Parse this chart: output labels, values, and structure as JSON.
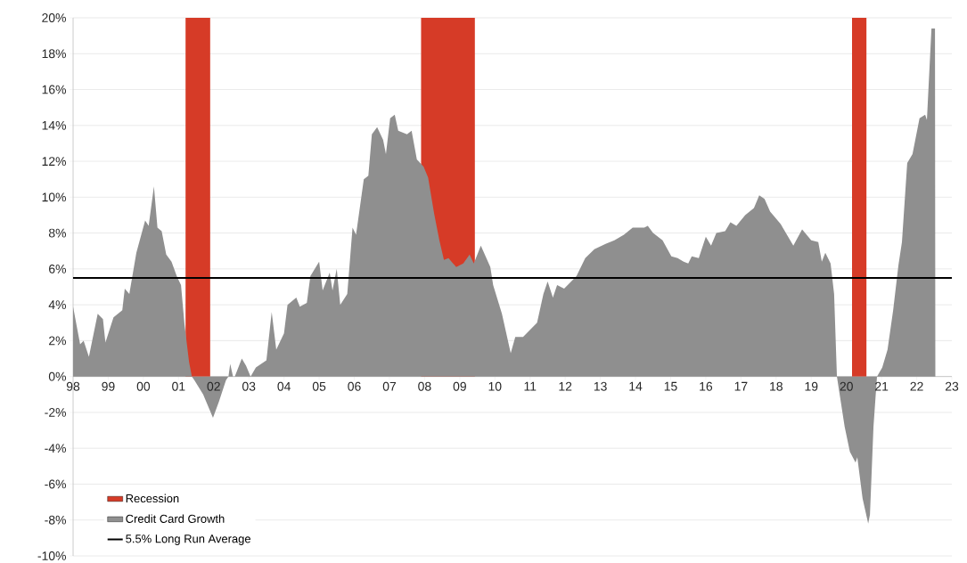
{
  "chart_data": {
    "type": "area",
    "x": [
      1998.0,
      1998.2,
      1998.3,
      1998.45,
      1998.7,
      1998.85,
      1998.92,
      1999.15,
      1999.4,
      1999.47,
      1999.6,
      1999.8,
      2000.05,
      2000.15,
      2000.3,
      2000.4,
      2000.52,
      2000.65,
      2000.8,
      2000.95,
      2001.07,
      2001.17,
      2001.3,
      2001.38,
      2001.45,
      2001.7,
      2001.98,
      2002.15,
      2002.35,
      2002.42,
      2002.47,
      2002.55,
      2002.6,
      2002.8,
      2002.92,
      2003.05,
      2003.2,
      2003.5,
      2003.65,
      2003.78,
      2004.0,
      2004.1,
      2004.35,
      2004.45,
      2004.65,
      2004.75,
      2005.0,
      2005.1,
      2005.3,
      2005.38,
      2005.5,
      2005.6,
      2005.8,
      2005.95,
      2006.05,
      2006.27,
      2006.4,
      2006.5,
      2006.65,
      2006.82,
      2006.9,
      2007.02,
      2007.15,
      2007.25,
      2007.5,
      2007.63,
      2007.78,
      2007.97,
      2008.1,
      2008.27,
      2008.42,
      2008.55,
      2008.68,
      2008.9,
      2009.1,
      2009.28,
      2009.4,
      2009.6,
      2009.87,
      2009.95,
      2010.2,
      2010.45,
      2010.58,
      2010.8,
      2011.05,
      2011.2,
      2011.38,
      2011.5,
      2011.65,
      2011.77,
      2011.97,
      2012.32,
      2012.57,
      2012.83,
      2013.15,
      2013.4,
      2013.67,
      2013.92,
      2014.25,
      2014.35,
      2014.5,
      2014.77,
      2015.02,
      2015.2,
      2015.37,
      2015.5,
      2015.6,
      2015.8,
      2016.0,
      2016.15,
      2016.3,
      2016.55,
      2016.7,
      2016.87,
      2017.12,
      2017.37,
      2017.52,
      2017.67,
      2017.83,
      2018.13,
      2018.49,
      2018.74,
      2019.0,
      2019.2,
      2019.3,
      2019.4,
      2019.55,
      2019.65,
      2019.73,
      2019.95,
      2020.1,
      2020.26,
      2020.31,
      2020.46,
      2020.62,
      2020.67,
      2020.77,
      2020.87,
      2021.02,
      2021.17,
      2021.33,
      2021.48,
      2021.58,
      2021.73,
      2021.88,
      2022.08,
      2022.24,
      2022.29,
      2022.42,
      2022.52,
      2022.53
    ],
    "series": [
      {
        "name": "Credit Card Growth",
        "color": "#8f8f8f",
        "values": [
          3.9,
          1.8,
          2.0,
          1.1,
          3.5,
          3.2,
          1.9,
          3.3,
          3.7,
          4.9,
          4.6,
          6.9,
          8.7,
          8.4,
          10.6,
          8.3,
          8.1,
          6.8,
          6.4,
          5.6,
          5.1,
          2.9,
          0.8,
          0,
          -0.2,
          -1.0,
          -2.3,
          -1.4,
          -0.2,
          0,
          0.7,
          0,
          0,
          1.0,
          0.6,
          0,
          0.5,
          0.9,
          3.6,
          1.5,
          2.4,
          4.0,
          4.4,
          3.9,
          4.1,
          5.6,
          6.4,
          4.8,
          5.8,
          4.8,
          6.0,
          4.0,
          4.6,
          8.3,
          7.9,
          11.0,
          11.2,
          13.5,
          13.9,
          13.2,
          12.4,
          14.4,
          14.6,
          13.7,
          13.5,
          13.7,
          12.1,
          11.7,
          11.1,
          9.1,
          7.6,
          6.5,
          6.6,
          6.1,
          6.3,
          6.8,
          6.3,
          7.3,
          6.1,
          5.1,
          3.5,
          1.3,
          2.2,
          2.2,
          2.7,
          3.0,
          4.6,
          5.3,
          4.4,
          5.1,
          4.9,
          5.6,
          6.6,
          7.1,
          7.4,
          7.6,
          7.9,
          8.3,
          8.3,
          8.4,
          8.0,
          7.6,
          6.7,
          6.6,
          6.4,
          6.3,
          6.7,
          6.6,
          7.8,
          7.3,
          8.0,
          8.1,
          8.6,
          8.4,
          9.0,
          9.4,
          10.1,
          9.9,
          9.2,
          8.5,
          7.3,
          8.2,
          7.6,
          7.5,
          6.4,
          6.9,
          6.3,
          4.6,
          0,
          -2.8,
          -4.2,
          -4.8,
          -4.5,
          -6.8,
          -8.2,
          -7.7,
          -2.8,
          0,
          0.5,
          1.5,
          3.7,
          6.2,
          7.5,
          11.9,
          12.4,
          14.4,
          14.6,
          14.3,
          19.4,
          19.4,
          0
        ]
      }
    ],
    "bands": [
      {
        "axis": "x",
        "from": 2001.2,
        "to": 2001.9,
        "label": "Recession",
        "color": "#d63b27"
      },
      {
        "axis": "x",
        "from": 2007.9,
        "to": 2009.43,
        "color": "#d63b27"
      },
      {
        "axis": "x",
        "from": 2020.16,
        "to": 2020.57,
        "color": "#d63b27"
      }
    ],
    "ref_lines": [
      {
        "axis": "y",
        "value": 5.5,
        "label": "5.5% Long Run Average",
        "color": "#000000"
      }
    ],
    "xlim": [
      1998,
      2023
    ],
    "ylim": [
      -10,
      20
    ],
    "xticks": [
      {
        "value": 1998,
        "label": "98"
      },
      {
        "value": 1999,
        "label": "99"
      },
      {
        "value": 2000,
        "label": "00"
      },
      {
        "value": 2001,
        "label": "01"
      },
      {
        "value": 2002,
        "label": "02"
      },
      {
        "value": 2003,
        "label": "03"
      },
      {
        "value": 2004,
        "label": "04"
      },
      {
        "value": 2005,
        "label": "05"
      },
      {
        "value": 2006,
        "label": "06"
      },
      {
        "value": 2007,
        "label": "07"
      },
      {
        "value": 2008,
        "label": "08"
      },
      {
        "value": 2009,
        "label": "09"
      },
      {
        "value": 2010,
        "label": "10"
      },
      {
        "value": 2011,
        "label": "11"
      },
      {
        "value": 2012,
        "label": "12"
      },
      {
        "value": 2013,
        "label": "13"
      },
      {
        "value": 2014,
        "label": "14"
      },
      {
        "value": 2015,
        "label": "15"
      },
      {
        "value": 2016,
        "label": "16"
      },
      {
        "value": 2017,
        "label": "17"
      },
      {
        "value": 2018,
        "label": "18"
      },
      {
        "value": 2019,
        "label": "19"
      },
      {
        "value": 2020,
        "label": "20"
      },
      {
        "value": 2021,
        "label": "21"
      },
      {
        "value": 2022,
        "label": "22"
      },
      {
        "value": 2023,
        "label": "23"
      }
    ],
    "yticks": [
      {
        "value": -10,
        "label": "-10%"
      },
      {
        "value": -8,
        "label": "-8%"
      },
      {
        "value": -6,
        "label": "-6%"
      },
      {
        "value": -4,
        "label": "-4%"
      },
      {
        "value": -2,
        "label": "-2%"
      },
      {
        "value": 0,
        "label": "0%"
      },
      {
        "value": 2,
        "label": "2%"
      },
      {
        "value": 4,
        "label": "4%"
      },
      {
        "value": 6,
        "label": "6%"
      },
      {
        "value": 8,
        "label": "8%"
      },
      {
        "value": 10,
        "label": "10%"
      },
      {
        "value": 12,
        "label": "12%"
      },
      {
        "value": 14,
        "label": "14%"
      },
      {
        "value": 16,
        "label": "16%"
      },
      {
        "value": 18,
        "label": "18%"
      },
      {
        "value": 20,
        "label": "20%"
      }
    ],
    "grid": "y",
    "legend": "bottom left"
  }
}
